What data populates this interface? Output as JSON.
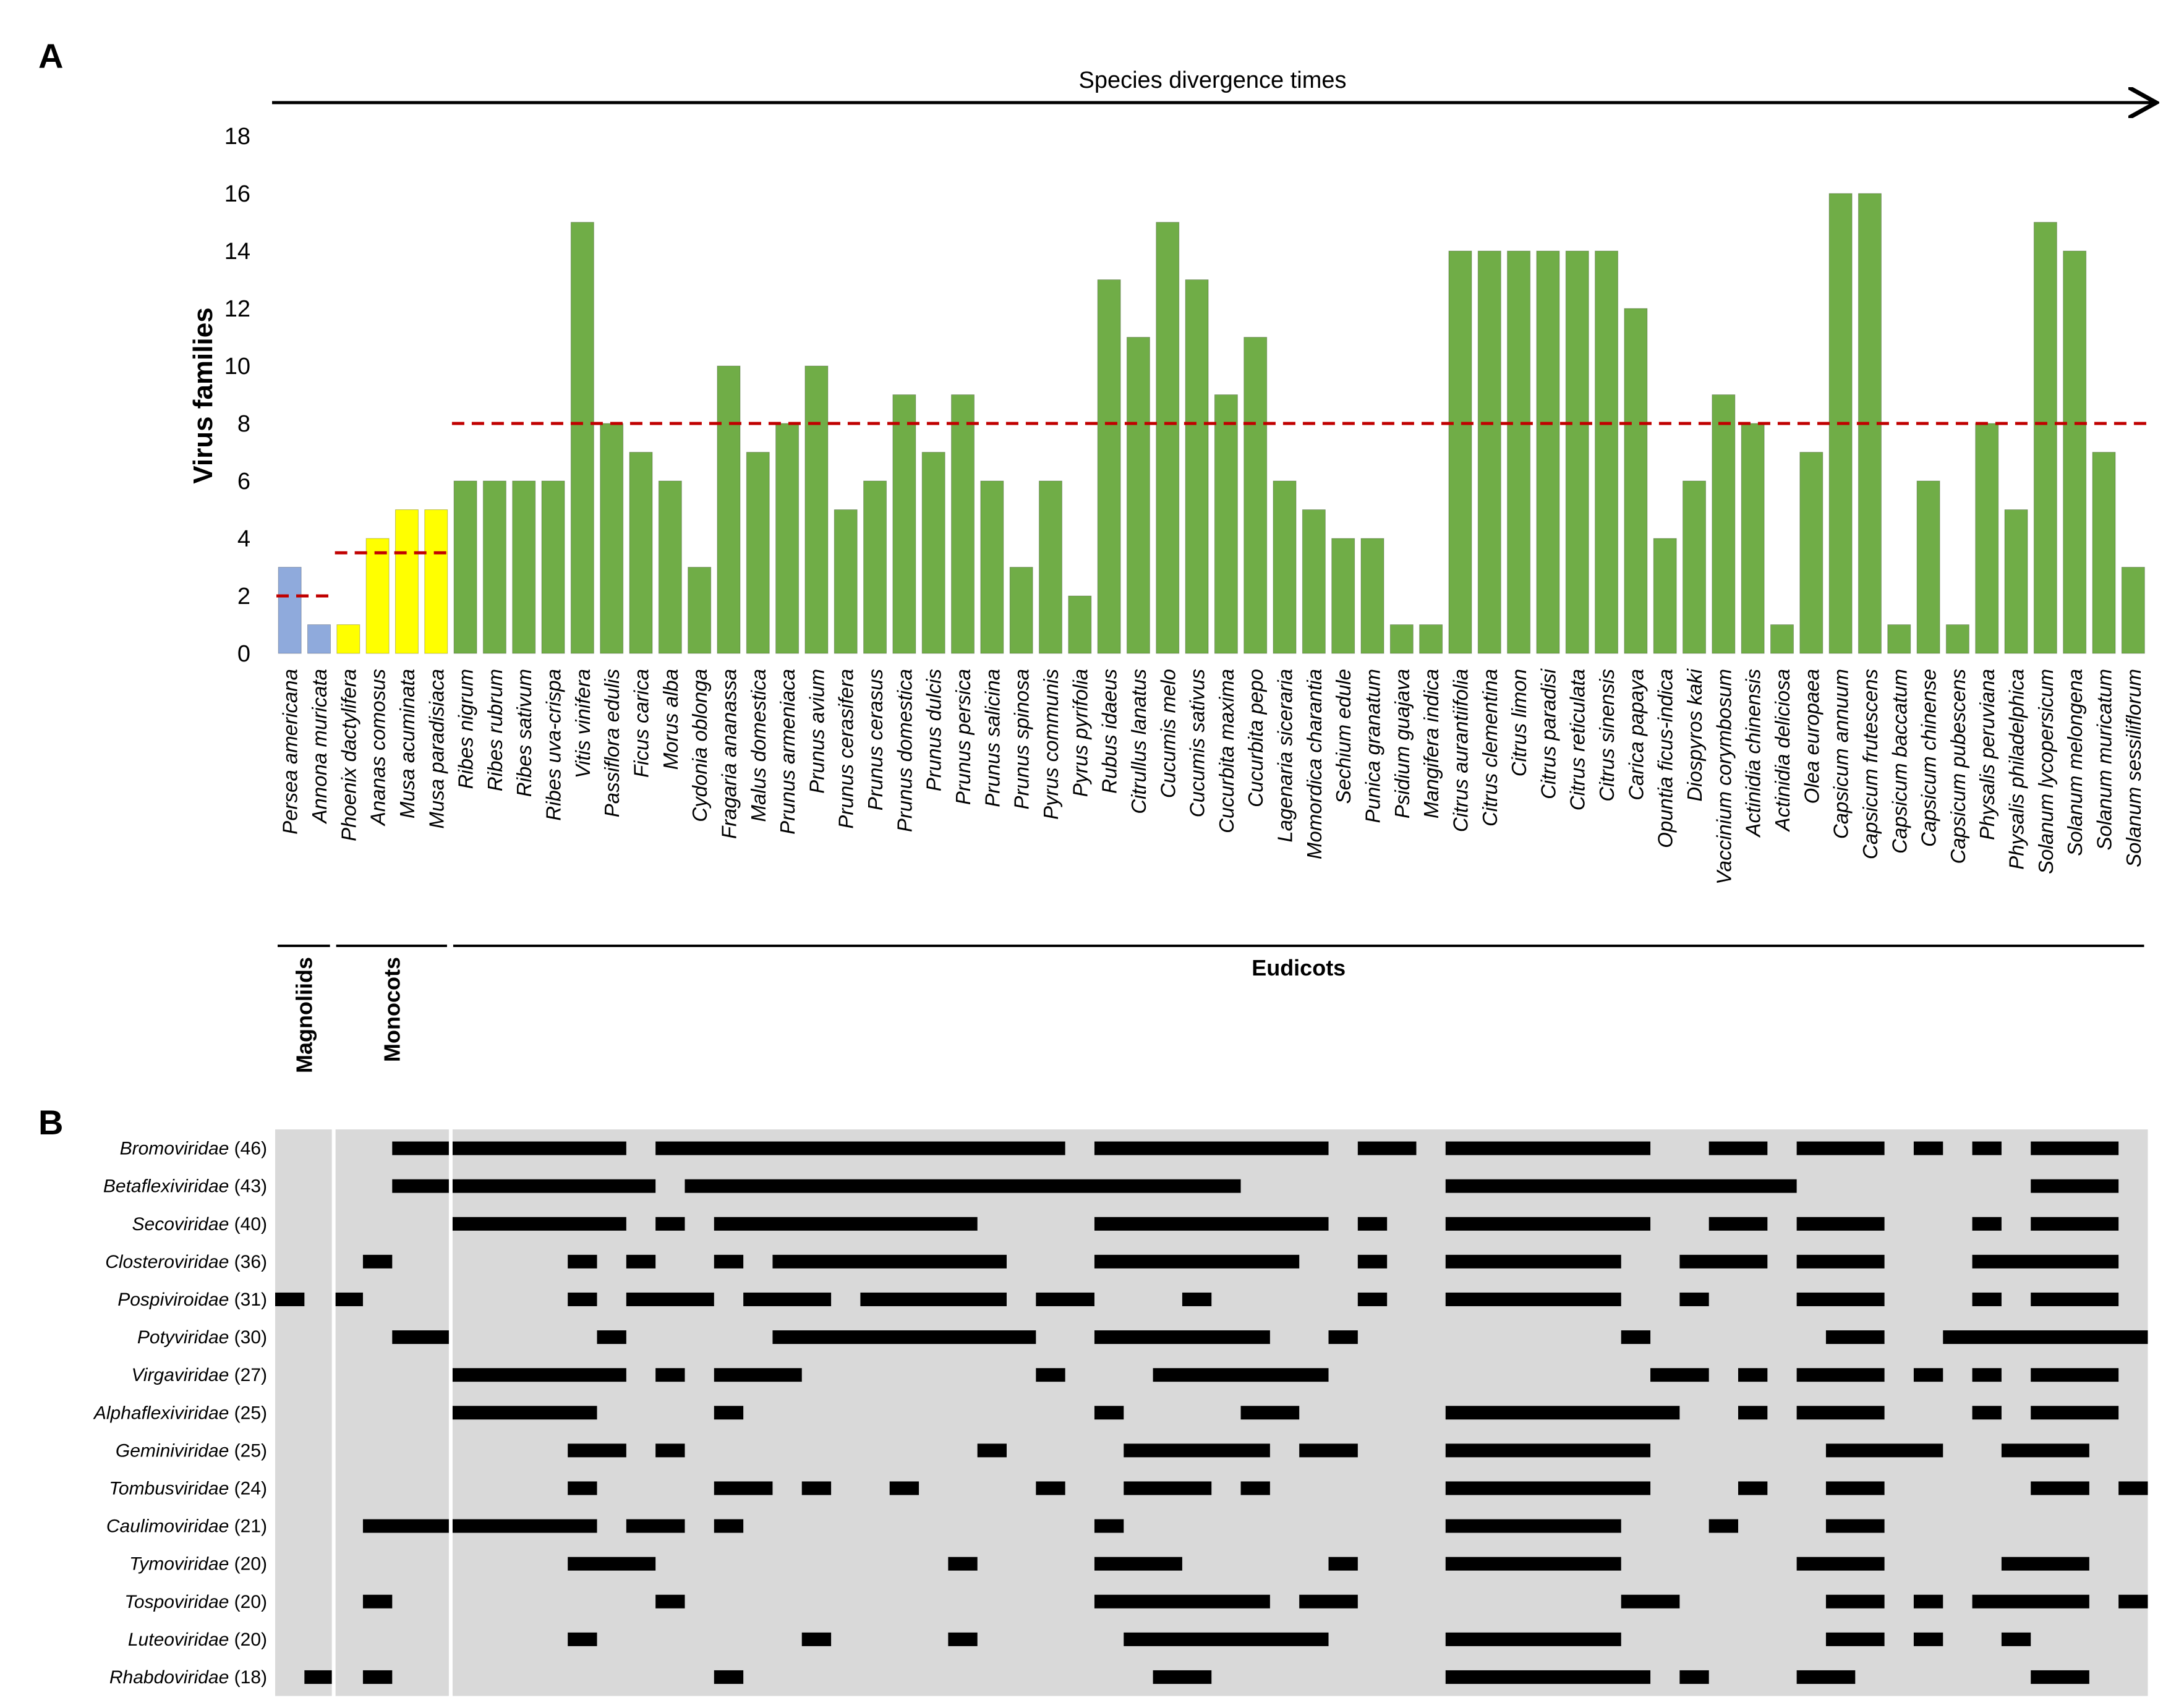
{
  "panel_a": {
    "label": "A"
  },
  "panel_b": {
    "label": "B"
  },
  "colors": {
    "Magnoliids": "#8faadc",
    "Monocots": "#ffff00",
    "Eudicots": "#70ad47",
    "threshold": "#c00000",
    "heat_bg": "#d9d9d9",
    "heat_on": "#000000"
  },
  "chart_data": [
    {
      "type": "bar",
      "title": "Species divergence times",
      "ylabel": "Virus families",
      "xlabel": "",
      "ylim": [
        0,
        18
      ],
      "yticks": [
        0,
        2,
        4,
        6,
        8,
        10,
        12,
        14,
        16,
        18
      ],
      "categories": [
        "Persea americana",
        "Annona muricata",
        "Phoenix dactylifera",
        "Ananas comosus",
        "Musa acuminata",
        "Musa paradisiaca",
        "Ribes nigrum",
        "Ribes rubrum",
        "Ribes sativum",
        "Ribes uva-crispa",
        "Vitis vinifera",
        "Passiflora edulis",
        "Ficus carica",
        "Morus alba",
        "Cydonia oblonga",
        "Fragaria ananassa",
        "Malus domestica",
        "Prunus armeniaca",
        "Prunus avium",
        "Prunus cerasifera",
        "Prunus cerasus",
        "Prunus domestica",
        "Prunus dulcis",
        "Prunus persica",
        "Prunus salicina",
        "Prunus spinosa",
        "Pyrus communis",
        "Pyrus pyrifolia",
        "Rubus idaeus",
        "Citrullus lanatus",
        "Cucumis melo",
        "Cucumis sativus",
        "Cucurbita maxima",
        "Cucurbita pepo",
        "Lagenaria siceraria",
        "Momordica charantia",
        "Sechium edule",
        "Punica granatum",
        "Psidium guajava",
        "Mangifera indica",
        "Citrus aurantiifolia",
        "Citrus clementina",
        "Citrus limon",
        "Citrus paradisi",
        "Citrus reticulata",
        "Citrus sinensis",
        "Carica papaya",
        "Opuntia ficus-indica",
        "Diospyros kaki",
        "Vaccinium corymbosum",
        "Actinidia chinensis",
        "Actinidia deliciosa",
        "Olea europaea",
        "Capsicum annuum",
        "Capsicum frutescens",
        "Capsicum baccatum",
        "Capsicum chinense",
        "Capsicum pubescens",
        "Physalis peruviana",
        "Physalis philadelphica",
        "Solanum lycopersicum",
        "Solanum melongena",
        "Solanum muricatum",
        "Solanum sessiliflorum"
      ],
      "values": [
        3,
        1,
        1,
        4,
        5,
        5,
        6,
        6,
        6,
        6,
        15,
        8,
        7,
        6,
        3,
        10,
        7,
        8,
        10,
        5,
        6,
        9,
        7,
        9,
        6,
        3,
        6,
        2,
        13,
        11,
        15,
        13,
        9,
        11,
        6,
        5,
        4,
        4,
        1,
        1,
        14,
        14,
        14,
        14,
        14,
        14,
        12,
        4,
        6,
        9,
        8,
        1,
        7,
        16,
        16,
        1,
        6,
        1,
        8,
        5,
        15,
        14,
        7,
        3
      ],
      "groups": [
        {
          "name": "Magnoliids",
          "start": 0,
          "end": 1,
          "mean": 2
        },
        {
          "name": "Monocots",
          "start": 2,
          "end": 5,
          "mean": 3.5
        },
        {
          "name": "Eudicots",
          "start": 6,
          "end": 63,
          "mean": 8
        }
      ]
    },
    {
      "type": "heatmap",
      "rows": [
        {
          "family": "Bromoviridae",
          "count": "(46)",
          "on": [
            [
              4,
              11
            ],
            [
              13,
              26
            ],
            [
              28,
              35
            ],
            [
              37,
              38
            ],
            [
              40,
              46
            ],
            [
              49,
              50
            ],
            [
              52,
              54
            ],
            [
              56,
              56
            ],
            [
              58,
              58
            ],
            [
              60,
              62
            ]
          ]
        },
        {
          "family": "Betaflexiviridae",
          "count": "(43)",
          "on": [
            [
              4,
              12
            ],
            [
              14,
              32
            ],
            [
              40,
              51
            ],
            [
              60,
              62
            ]
          ]
        },
        {
          "family": "Secoviridae",
          "count": "(40)",
          "on": [
            [
              6,
              11
            ],
            [
              13,
              13
            ],
            [
              15,
              23
            ],
            [
              28,
              35
            ],
            [
              37,
              37
            ],
            [
              40,
              46
            ],
            [
              49,
              50
            ],
            [
              52,
              54
            ],
            [
              58,
              58
            ],
            [
              60,
              62
            ]
          ]
        },
        {
          "family": "Closteroviridae",
          "count": "(36)",
          "on": [
            [
              3,
              3
            ],
            [
              10,
              10
            ],
            [
              12,
              12
            ],
            [
              15,
              15
            ],
            [
              17,
              24
            ],
            [
              28,
              34
            ],
            [
              37,
              37
            ],
            [
              40,
              45
            ],
            [
              48,
              50
            ],
            [
              52,
              54
            ],
            [
              58,
              62
            ]
          ]
        },
        {
          "family": "Pospiviroidae",
          "count": "(31)",
          "on": [
            [
              0,
              0
            ],
            [
              2,
              2
            ],
            [
              10,
              10
            ],
            [
              12,
              14
            ],
            [
              16,
              18
            ],
            [
              20,
              24
            ],
            [
              26,
              27
            ],
            [
              31,
              31
            ],
            [
              37,
              37
            ],
            [
              40,
              45
            ],
            [
              48,
              48
            ],
            [
              52,
              54
            ],
            [
              58,
              58
            ],
            [
              60,
              62
            ]
          ]
        },
        {
          "family": "Potyviridae",
          "count": "(30)",
          "on": [
            [
              4,
              5
            ],
            [
              11,
              11
            ],
            [
              17,
              25
            ],
            [
              28,
              33
            ],
            [
              36,
              36
            ],
            [
              46,
              46
            ],
            [
              53,
              54
            ],
            [
              57,
              63
            ]
          ]
        },
        {
          "family": "Virgaviridae",
          "count": "(27)",
          "on": [
            [
              6,
              11
            ],
            [
              13,
              13
            ],
            [
              15,
              17
            ],
            [
              26,
              26
            ],
            [
              30,
              35
            ],
            [
              47,
              48
            ],
            [
              50,
              50
            ],
            [
              52,
              54
            ],
            [
              56,
              56
            ],
            [
              58,
              58
            ],
            [
              60,
              62
            ]
          ]
        },
        {
          "family": "Alphaflexiviridae",
          "count": "(25)",
          "on": [
            [
              6,
              10
            ],
            [
              15,
              15
            ],
            [
              28,
              28
            ],
            [
              33,
              34
            ],
            [
              40,
              47
            ],
            [
              50,
              50
            ],
            [
              52,
              54
            ],
            [
              58,
              58
            ],
            [
              60,
              62
            ]
          ]
        },
        {
          "family": "Geminiviridae",
          "count": "(25)",
          "on": [
            [
              10,
              11
            ],
            [
              13,
              13
            ],
            [
              24,
              24
            ],
            [
              29,
              33
            ],
            [
              35,
              36
            ],
            [
              40,
              46
            ],
            [
              53,
              56
            ],
            [
              59,
              61
            ]
          ]
        },
        {
          "family": "Tombusviridae",
          "count": "(24)",
          "on": [
            [
              10,
              10
            ],
            [
              15,
              16
            ],
            [
              18,
              18
            ],
            [
              21,
              21
            ],
            [
              26,
              26
            ],
            [
              29,
              31
            ],
            [
              33,
              33
            ],
            [
              40,
              46
            ],
            [
              50,
              50
            ],
            [
              53,
              54
            ],
            [
              60,
              61
            ],
            [
              63,
              63
            ]
          ]
        },
        {
          "family": "Caulimoviridae",
          "count": "(21)",
          "on": [
            [
              3,
              10
            ],
            [
              12,
              13
            ],
            [
              15,
              15
            ],
            [
              28,
              28
            ],
            [
              40,
              45
            ],
            [
              49,
              49
            ],
            [
              53,
              54
            ]
          ]
        },
        {
          "family": "Tymoviridae",
          "count": "(20)",
          "on": [
            [
              10,
              12
            ],
            [
              23,
              23
            ],
            [
              28,
              30
            ],
            [
              36,
              36
            ],
            [
              40,
              45
            ],
            [
              52,
              54
            ],
            [
              59,
              61
            ]
          ]
        },
        {
          "family": "Tospoviridae",
          "count": "(20)",
          "on": [
            [
              3,
              3
            ],
            [
              13,
              13
            ],
            [
              28,
              33
            ],
            [
              35,
              36
            ],
            [
              46,
              47
            ],
            [
              53,
              54
            ],
            [
              56,
              56
            ],
            [
              58,
              61
            ],
            [
              63,
              63
            ]
          ]
        },
        {
          "family": "Luteoviridae",
          "count": "(20)",
          "on": [
            [
              10,
              10
            ],
            [
              18,
              18
            ],
            [
              23,
              23
            ],
            [
              29,
              35
            ],
            [
              40,
              45
            ],
            [
              53,
              54
            ],
            [
              56,
              56
            ],
            [
              59,
              59
            ]
          ]
        },
        {
          "family": "Rhabdoviridae",
          "count": "(18)",
          "on": [
            [
              1,
              1
            ],
            [
              3,
              3
            ],
            [
              15,
              15
            ],
            [
              30,
              31
            ],
            [
              40,
              46
            ],
            [
              48,
              48
            ],
            [
              52,
              53
            ],
            [
              60,
              61
            ]
          ]
        }
      ]
    }
  ]
}
